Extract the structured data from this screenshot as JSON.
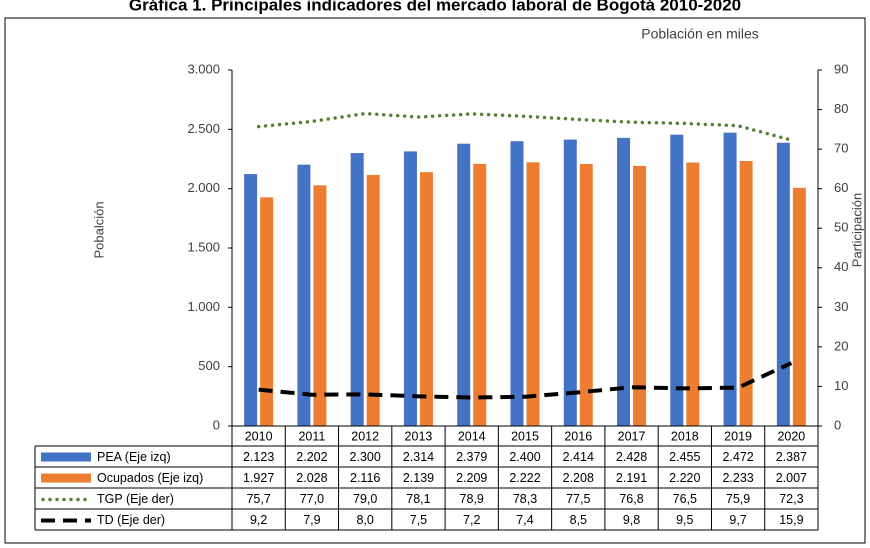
{
  "chart_data": {
    "type": "bar_line_table",
    "title": "Gráfica 1. Principales indicadores del mercado laboral de Bogotá 2010-2020",
    "annotation": "Población en miles",
    "y_label": "Pobalción",
    "y2_label": "Participación",
    "categories": [
      "2010",
      "2011",
      "2012",
      "2013",
      "2014",
      "2015",
      "2016",
      "2017",
      "2018",
      "2019",
      "2020"
    ],
    "ylim": [
      0,
      3000
    ],
    "yticks": [
      0,
      500,
      {
        "value": 1000,
        "label": "1.000"
      },
      {
        "value": 1500,
        "label": "1.500"
      },
      {
        "value": 2000,
        "label": "2.000"
      },
      {
        "value": 2500,
        "label": "2.500"
      },
      {
        "value": 3000,
        "label": "3.000"
      }
    ],
    "y2lim": [
      0,
      90
    ],
    "y2ticks": [
      0,
      10,
      20,
      30,
      40,
      50,
      60,
      70,
      80,
      90
    ],
    "series": [
      {
        "name": "PEA (Eje izq)",
        "kind": "bar",
        "color": "#4472c4",
        "values": [
          2123,
          2202,
          2300,
          2314,
          2379,
          2400,
          2414,
          2428,
          2455,
          2472,
          2387
        ],
        "value_labels": [
          "2.123",
          "2.202",
          "2.300",
          "2.314",
          "2.379",
          "2.400",
          "2.414",
          "2.428",
          "2.455",
          "2.472",
          "2.387"
        ]
      },
      {
        "name": "Ocupados (Eje izq)",
        "kind": "bar",
        "color": "#ed7d31",
        "values": [
          1927,
          2028,
          2116,
          2139,
          2209,
          2222,
          2208,
          2191,
          2220,
          2233,
          2007
        ],
        "value_labels": [
          "1.927",
          "2.028",
          "2.116",
          "2.139",
          "2.209",
          "2.222",
          "2.208",
          "2.191",
          "2.220",
          "2.233",
          "2.007"
        ]
      },
      {
        "name": "TGP (Eje der)",
        "kind": "dotted",
        "axis": "y2",
        "color": "#548235",
        "values": [
          75.7,
          77.0,
          79.0,
          78.1,
          78.9,
          78.3,
          77.5,
          76.8,
          76.5,
          75.9,
          72.3
        ],
        "value_labels": [
          "75,7",
          "77,0",
          "79,0",
          "78,1",
          "78,9",
          "78,3",
          "77,5",
          "76,8",
          "76,5",
          "75,9",
          "72,3"
        ]
      },
      {
        "name": "TD (Eje der)",
        "kind": "dashed",
        "axis": "y2",
        "color": "#000000",
        "values": [
          9.2,
          7.9,
          8.0,
          7.5,
          7.2,
          7.4,
          8.5,
          9.8,
          9.5,
          9.7,
          15.9
        ],
        "value_labels": [
          "9,2",
          "7,9",
          "8,0",
          "7,5",
          "7,2",
          "7,4",
          "8,5",
          "9,8",
          "9,5",
          "9,7",
          "15,9"
        ]
      }
    ]
  }
}
